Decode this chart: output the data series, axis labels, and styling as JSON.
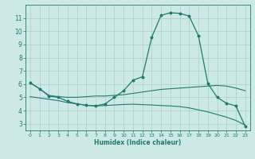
{
  "xlabel": "Humidex (Indice chaleur)",
  "bg_color": "#cce9e5",
  "grid_color": "#aacfcb",
  "line_color": "#1e7b70",
  "xlim": [
    -0.5,
    23.5
  ],
  "ylim": [
    2.5,
    12.0
  ],
  "yticks": [
    3,
    4,
    5,
    6,
    7,
    8,
    9,
    10,
    11
  ],
  "xticks": [
    0,
    1,
    2,
    3,
    4,
    5,
    6,
    7,
    8,
    9,
    10,
    11,
    12,
    13,
    14,
    15,
    16,
    17,
    18,
    19,
    20,
    21,
    22,
    23
  ],
  "line1_x": [
    0,
    1,
    2,
    3,
    4,
    5,
    6,
    7,
    8,
    9,
    10,
    11,
    12,
    13,
    14,
    15,
    16,
    17,
    18,
    19,
    20,
    21,
    22,
    23
  ],
  "line1_y": [
    6.1,
    5.65,
    5.1,
    5.0,
    4.7,
    4.5,
    4.4,
    4.35,
    4.5,
    5.0,
    5.5,
    6.3,
    6.55,
    9.55,
    11.2,
    11.4,
    11.35,
    11.15,
    9.65,
    6.05,
    5.0,
    4.55,
    4.35,
    2.8
  ],
  "line2_x": [
    0,
    1,
    2,
    3,
    4,
    5,
    6,
    7,
    8,
    9,
    10,
    11,
    12,
    13,
    14,
    15,
    16,
    17,
    18,
    19,
    20,
    21,
    22,
    23
  ],
  "line2_y": [
    6.1,
    5.65,
    5.15,
    5.05,
    5.0,
    5.0,
    5.05,
    5.1,
    5.1,
    5.15,
    5.2,
    5.3,
    5.4,
    5.5,
    5.6,
    5.65,
    5.7,
    5.75,
    5.8,
    5.85,
    5.9,
    5.85,
    5.7,
    5.5
  ],
  "line3_x": [
    0,
    1,
    2,
    3,
    4,
    5,
    6,
    7,
    8,
    9,
    10,
    11,
    12,
    13,
    14,
    15,
    16,
    17,
    18,
    19,
    20,
    21,
    22,
    23
  ],
  "line3_y": [
    5.05,
    4.95,
    4.85,
    4.75,
    4.6,
    4.5,
    4.4,
    4.35,
    4.38,
    4.42,
    4.46,
    4.48,
    4.45,
    4.42,
    4.38,
    4.35,
    4.3,
    4.2,
    4.05,
    3.9,
    3.7,
    3.5,
    3.25,
    2.9
  ],
  "marker_indices_line1": [
    0,
    1,
    2,
    3,
    4,
    5,
    6,
    7,
    8,
    9,
    10,
    11,
    12,
    13,
    14,
    15,
    16,
    17,
    18,
    19,
    20,
    21,
    22,
    23
  ]
}
